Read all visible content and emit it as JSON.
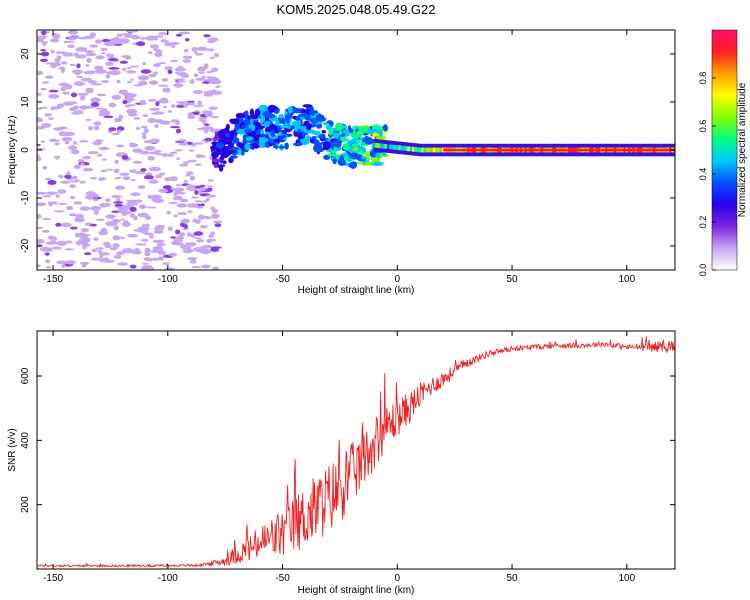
{
  "title": "KOM5.2025.048.05.49.G22",
  "chart_data": [
    {
      "type": "heatmap",
      "title": "KOM5.2025.048.05.49.G22",
      "xlabel": "Height of straight line (km)",
      "ylabel": "Frequency (Hz)",
      "xlim": [
        -157,
        121
      ],
      "ylim": [
        -25,
        25
      ],
      "xticks": [
        -150,
        -100,
        -50,
        0,
        50,
        100
      ],
      "yticks": [
        -20,
        -10,
        0,
        10,
        20
      ],
      "xtick_labels": [
        "-150",
        "-100",
        "-50",
        "0",
        "50",
        "100"
      ],
      "ytick_labels": [
        "-20",
        "-10",
        "0",
        "10",
        "20"
      ],
      "colorbar": {
        "label": "Normalized spectral amplitude",
        "range": [
          0,
          1
        ],
        "ticks": [
          0.0,
          0.2,
          0.4,
          0.6,
          0.8
        ],
        "tick_labels": [
          "0.0",
          "0.2",
          "0.4",
          "0.6",
          "0.8"
        ],
        "colormap": [
          "#ffffff",
          "#c9a6f2",
          "#7a26e0",
          "#2a00e8",
          "#0050ff",
          "#00c8ff",
          "#00ff80",
          "#80ff00",
          "#ffff00",
          "#ffa000",
          "#ff2020",
          "#ff1070"
        ]
      },
      "ridge": {
        "x": [
          -80,
          -70,
          -60,
          -50,
          -40,
          -30,
          -20,
          -10,
          0,
          10,
          20,
          40,
          60,
          80,
          100,
          120
        ],
        "freq": [
          -1.5,
          3.0,
          5.0,
          4.5,
          5.5,
          2.0,
          0.5,
          1.0,
          0.5,
          0.0,
          0.0,
          0.0,
          0.0,
          0.0,
          0.0,
          0.0
        ],
        "amplitude": [
          0.15,
          0.25,
          0.3,
          0.32,
          0.3,
          0.35,
          0.4,
          0.5,
          0.55,
          0.6,
          0.7,
          0.8,
          0.8,
          0.85,
          0.8,
          0.85
        ]
      },
      "grid": false
    },
    {
      "type": "line",
      "xlabel": "Height of straight line (km)",
      "ylabel": "SNR (v/v)",
      "xlim": [
        -157,
        121
      ],
      "ylim": [
        0,
        740
      ],
      "xticks": [
        -150,
        -100,
        -50,
        0,
        50,
        100
      ],
      "yticks": [
        200,
        400,
        600
      ],
      "xtick_labels": [
        "-150",
        "-100",
        "-50",
        "0",
        "50",
        "100"
      ],
      "ytick_labels": [
        "200",
        "400",
        "600"
      ],
      "series": [
        {
          "color": "#ee2222",
          "x": [
            -157,
            -140,
            -120,
            -100,
            -85,
            -75,
            -70,
            -65,
            -60,
            -55,
            -50,
            -45,
            -40,
            -35,
            -30,
            -25,
            -20,
            -15,
            -10,
            -5,
            0,
            5,
            10,
            15,
            20,
            25,
            30,
            35,
            40,
            50,
            60,
            70,
            80,
            90,
            100,
            110,
            121
          ],
          "values": [
            10,
            10,
            10,
            10,
            12,
            25,
            45,
            60,
            80,
            95,
            110,
            135,
            165,
            190,
            220,
            250,
            290,
            340,
            390,
            440,
            470,
            500,
            540,
            570,
            590,
            615,
            640,
            655,
            670,
            685,
            690,
            695,
            695,
            700,
            690,
            690,
            695
          ],
          "noise_amplitude": [
            3,
            3,
            3,
            3,
            4,
            15,
            30,
            40,
            55,
            70,
            80,
            90,
            100,
            110,
            110,
            110,
            100,
            90,
            80,
            70,
            60,
            50,
            40,
            30,
            25,
            20,
            15,
            12,
            10,
            8,
            8,
            8,
            8,
            8,
            8,
            15,
            20
          ]
        }
      ],
      "grid": false
    }
  ]
}
